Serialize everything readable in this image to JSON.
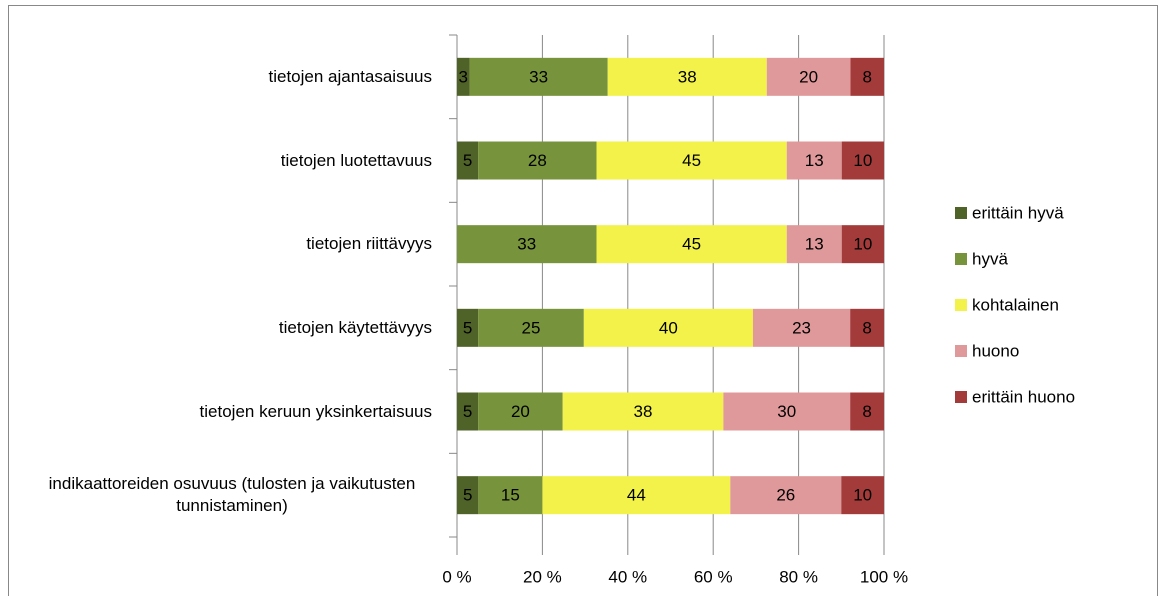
{
  "chart_data": {
    "type": "bar",
    "orientation": "horizontal",
    "stacked": "percent",
    "categories": [
      "tietojen ajantasaisuus",
      "tietojen luotettavuus",
      "tietojen riittävyys",
      "tietojen käytettävyys",
      "tietojen keruun yksinkertaisuus",
      "indikaattoreiden osuvuus (tulosten ja vaikutusten tunnistaminen)"
    ],
    "series": [
      {
        "name": "erittäin hyvä",
        "color": "#4f6228",
        "values": [
          3,
          5,
          null,
          5,
          5,
          5
        ]
      },
      {
        "name": "hyvä",
        "color": "#77933c",
        "values": [
          33,
          28,
          33,
          25,
          20,
          15
        ]
      },
      {
        "name": "kohtalainen",
        "color": "#f2f24a",
        "values": [
          38,
          45,
          45,
          40,
          38,
          44
        ]
      },
      {
        "name": "huono",
        "color": "#e0999a",
        "values": [
          20,
          13,
          13,
          23,
          30,
          26
        ]
      },
      {
        "name": "erittäin huono",
        "color": "#a33b3b",
        "values": [
          8,
          10,
          10,
          8,
          8,
          10
        ]
      }
    ],
    "xlim": [
      0,
      100
    ],
    "xticks": [
      {
        "value": 0,
        "label": "0 %"
      },
      {
        "value": 20,
        "label": "20 %"
      },
      {
        "value": 40,
        "label": "40 %"
      },
      {
        "value": 60,
        "label": "60 %"
      },
      {
        "value": 80,
        "label": "80 %"
      },
      {
        "value": 100,
        "label": "100 %"
      }
    ],
    "grid": true,
    "legend": "right"
  }
}
